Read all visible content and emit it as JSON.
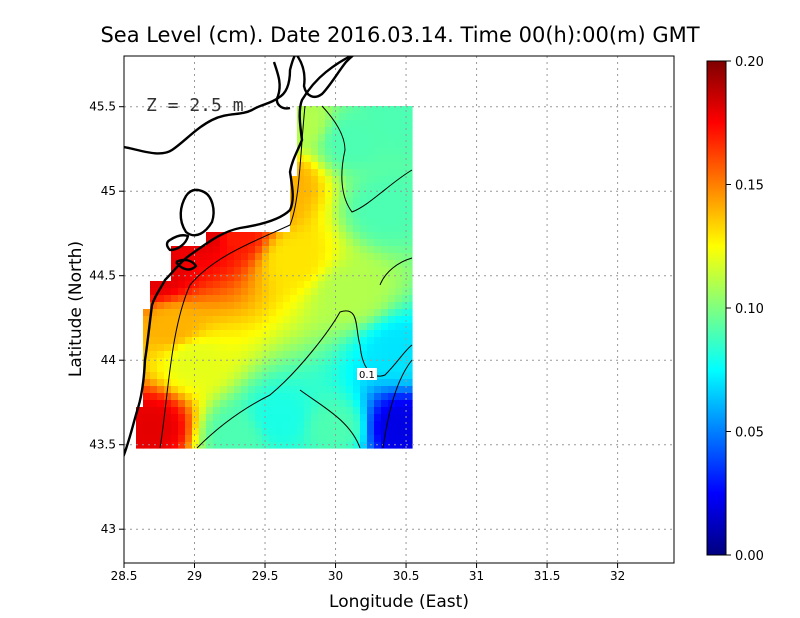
{
  "chart_data": {
    "type": "heatmap",
    "title": "Sea Level (cm). Date 2016.03.14. Time 00(h):00(m) GMT",
    "xlabel": "Longitude (East)",
    "ylabel": "Latitude (North)",
    "xlim": [
      28.5,
      32.4
    ],
    "ylim": [
      42.8,
      45.8
    ],
    "x_ticks": [
      "28.5",
      "29",
      "29.5",
      "30",
      "30.5",
      "31",
      "31.5",
      "32"
    ],
    "x_tick_values": [
      28.5,
      29,
      29.5,
      30,
      30.5,
      31,
      31.5,
      32
    ],
    "y_ticks": [
      "43",
      "43.5",
      "44",
      "44.5",
      "45",
      "45.5"
    ],
    "y_tick_values": [
      43,
      43.5,
      44,
      44.5,
      45,
      45.5
    ],
    "grid": true,
    "annotation": "Z = 2.5 m",
    "contour_label": "0.1",
    "colorbar": {
      "min": 0.0,
      "max": 0.2,
      "ticks": [
        "0.00",
        "0.05",
        "0.10",
        "0.15",
        "0.20"
      ],
      "tick_values": [
        0.0,
        0.05,
        0.1,
        0.15,
        0.2
      ],
      "colors": [
        "#00007f",
        "#0000ff",
        "#007fff",
        "#00ffff",
        "#7fff7f",
        "#ffff00",
        "#ff7f00",
        "#ff0000",
        "#7f0000"
      ]
    },
    "field_points": [
      {
        "lon": 28.7,
        "lat": 43.6,
        "value": 0.18
      },
      {
        "lon": 28.75,
        "lat": 44.5,
        "value": 0.18
      },
      {
        "lon": 29.1,
        "lat": 44.75,
        "value": 0.18
      },
      {
        "lon": 29.3,
        "lat": 44.75,
        "value": 0.17
      },
      {
        "lon": 28.85,
        "lat": 44.2,
        "value": 0.14
      },
      {
        "lon": 29.65,
        "lat": 45.05,
        "value": 0.14
      },
      {
        "lon": 29.75,
        "lat": 45.4,
        "value": 0.11
      },
      {
        "lon": 29.7,
        "lat": 44.6,
        "value": 0.13
      },
      {
        "lon": 30.1,
        "lat": 44.4,
        "value": 0.11
      },
      {
        "lon": 29.6,
        "lat": 43.65,
        "value": 0.08
      },
      {
        "lon": 29.3,
        "lat": 43.55,
        "value": 0.09
      },
      {
        "lon": 30.45,
        "lat": 43.6,
        "value": 0.02
      },
      {
        "lon": 30.45,
        "lat": 44.05,
        "value": 0.07
      },
      {
        "lon": 30.1,
        "lat": 45.3,
        "value": 0.09
      },
      {
        "lon": 30.45,
        "lat": 45.45,
        "value": 0.09
      },
      {
        "lon": 30.35,
        "lat": 44.9,
        "value": 0.09
      },
      {
        "lon": 30.0,
        "lat": 43.6,
        "value": 0.09
      },
      {
        "lon": 29.0,
        "lat": 44.0,
        "value": 0.12
      }
    ]
  }
}
